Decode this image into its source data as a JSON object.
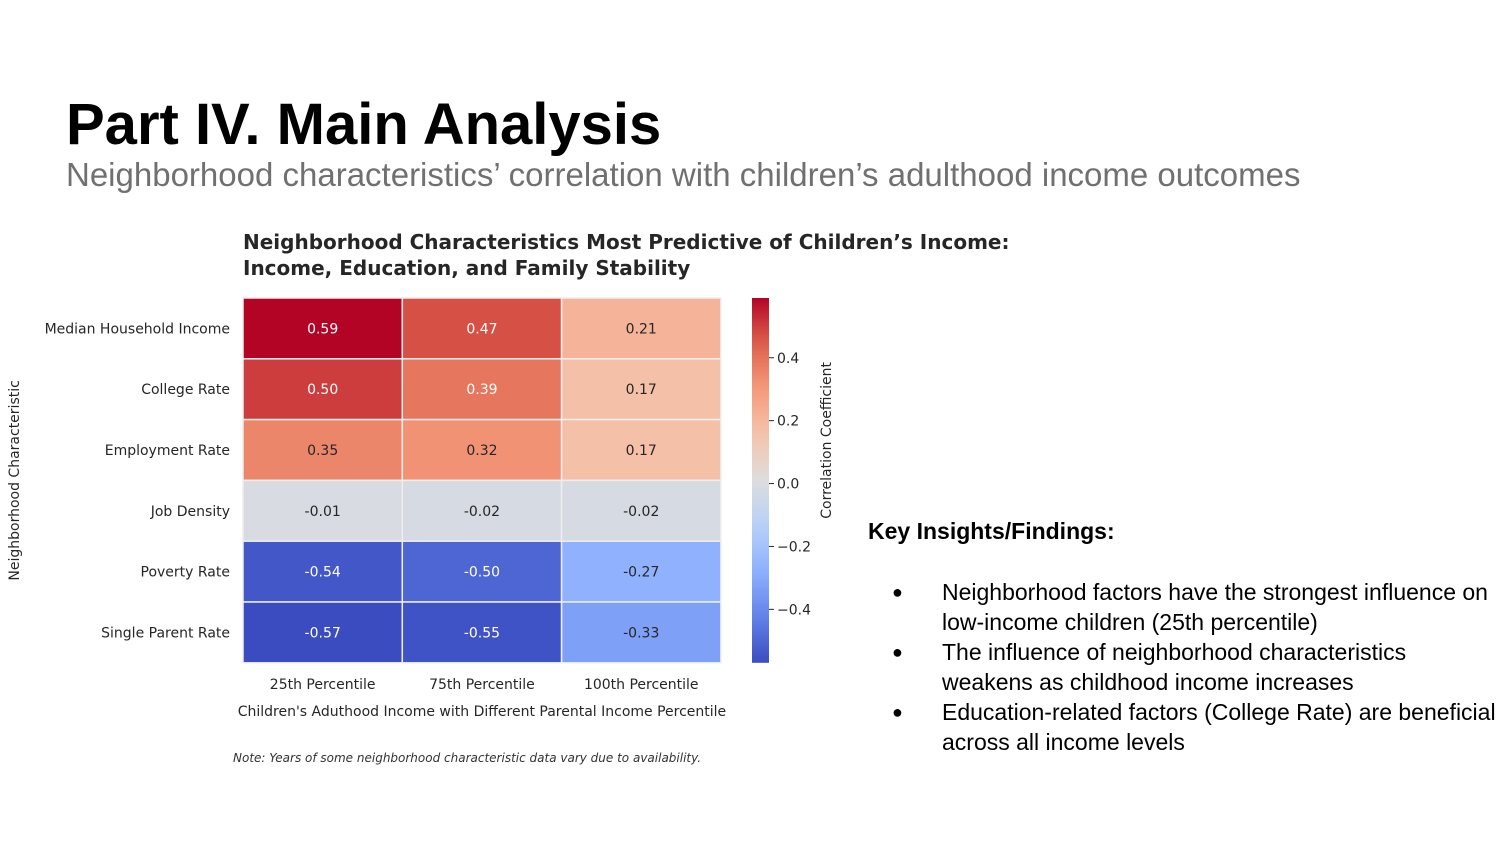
{
  "slide": {
    "title": "Part IV. Main Analysis",
    "subtitle": "Neighborhood characteristics’ correlation with children’s adulthood income outcomes"
  },
  "chart": {
    "title_line1": "Neighborhood Characteristics Most Predictive of Children’s Income:",
    "title_line2": "Income, Education, and Family Stability",
    "note": "Note: Years of some neighborhood characteristic data vary due to availability."
  },
  "chart_data": {
    "type": "heatmap",
    "title": "Neighborhood Characteristics Most Predictive of Children’s Income: Income, Education, and Family Stability",
    "xlabel": "Children's Aduthood Income with Different Parental Income Percentile",
    "ylabel": "Neighborhood Characteristic",
    "columns": [
      "25th Percentile",
      "75th Percentile",
      "100th Percentile"
    ],
    "rows": [
      "Median Household Income",
      "College Rate",
      "Employment Rate",
      "Job Density",
      "Poverty Rate",
      "Single Parent Rate"
    ],
    "values": [
      [
        0.59,
        0.47,
        0.21
      ],
      [
        0.5,
        0.39,
        0.17
      ],
      [
        0.35,
        0.32,
        0.17
      ],
      [
        -0.01,
        -0.02,
        -0.02
      ],
      [
        -0.54,
        -0.5,
        -0.27
      ],
      [
        -0.57,
        -0.55,
        -0.33
      ]
    ],
    "colorbar": {
      "label": "Correlation Coefficient",
      "range": [
        -0.57,
        0.59
      ],
      "ticks": [
        0.4,
        0.2,
        0.0,
        -0.2,
        -0.4
      ],
      "tick_labels": [
        "0.4",
        "0.2",
        "0.0",
        "−0.2",
        "−0.4"
      ],
      "colormap": "coolwarm"
    }
  },
  "insights": {
    "heading": "Key Insights/Findings:",
    "items": [
      "Neighborhood factors have the strongest influence on low-income children (25th percentile)",
      "The influence of neighborhood characteristics weakens as childhood income increases",
      "Education-related factors (College Rate) are beneficial across all income levels"
    ],
    "bullet": "●"
  }
}
